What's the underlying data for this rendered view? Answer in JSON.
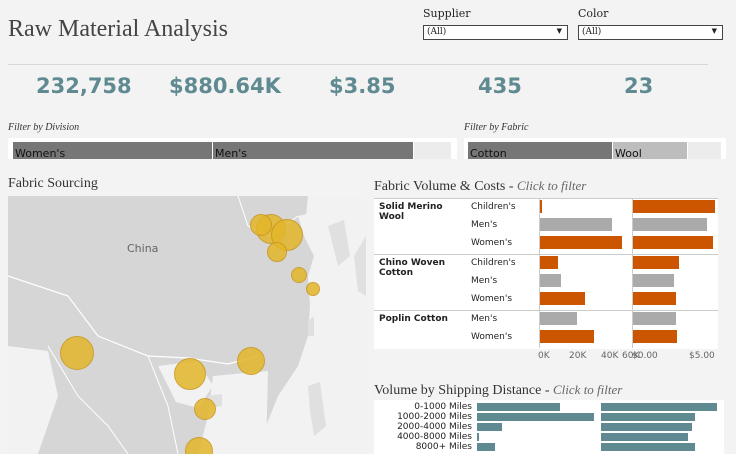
{
  "header": {
    "title": "Raw Material Analysis",
    "supplier_label": "Supplier",
    "supplier_value": "(All)",
    "color_label": "Color",
    "color_value": "(All)"
  },
  "kpis": [
    "232,758",
    "$880.64K",
    "$3.85",
    "435",
    "23"
  ],
  "division_filter": {
    "label": "Filter by Division",
    "segments": [
      {
        "label": "Women's",
        "share": 0.284
      },
      {
        "label": "Men's",
        "share": 0.285
      },
      {
        "label": "",
        "share": 0.054
      }
    ]
  },
  "fabric_filter": {
    "label": "Filter by Fabric",
    "segments": [
      {
        "label": "Cotton",
        "share": 0.56
      },
      {
        "label": "Wool",
        "share": 0.29
      },
      {
        "label": "",
        "share": 0.13
      }
    ]
  },
  "map": {
    "title": "Fabric Sourcing",
    "country_label": "China",
    "bubble_color": "#e3b62a"
  },
  "fabric_chart": {
    "title": "Fabric Volume & Costs",
    "hint": "Click to filter",
    "colors": {
      "men": "#aaaaaa",
      "other": "#cc5500"
    },
    "groups": [
      {
        "name": "Solid Merino Wool",
        "rows": [
          {
            "division": "Children's",
            "volume": 2000,
            "cost": 5.1
          },
          {
            "division": "Men's",
            "volume": 50000,
            "cost": 4.6
          },
          {
            "division": "Women's",
            "volume": 57000,
            "cost": 5.0
          }
        ]
      },
      {
        "name": "Chino Woven Cotton",
        "rows": [
          {
            "division": "Children's",
            "volume": 13000,
            "cost": 2.9
          },
          {
            "division": "Men's",
            "volume": 15000,
            "cost": 2.6
          },
          {
            "division": "Women's",
            "volume": 32000,
            "cost": 2.7
          }
        ]
      },
      {
        "name": "Poplin Cotton",
        "rows": [
          {
            "division": "Men's",
            "volume": 26000,
            "cost": 2.7
          },
          {
            "division": "Women's",
            "volume": 38000,
            "cost": 2.8
          }
        ]
      }
    ],
    "volume_ticks": [
      "0K",
      "20K",
      "40K",
      "60K"
    ],
    "cost_ticks": [
      "$0.00",
      "$5.00"
    ]
  },
  "distance_chart": {
    "title": "Volume by Shipping Distance",
    "hint": "Click to filter",
    "color": "#5f8a91",
    "rows": [
      {
        "label": "0-1000 Miles",
        "volume": 0.7,
        "cost": 0.98
      },
      {
        "label": "1000-2000 Miles",
        "volume": 0.99,
        "cost": 0.8
      },
      {
        "label": "2000-4000 Miles",
        "volume": 0.21,
        "cost": 0.77
      },
      {
        "label": "4000-8000 Miles",
        "volume": 0.02,
        "cost": 0.74
      },
      {
        "label": "8000+ Miles",
        "volume": 0.15,
        "cost": 0.8
      }
    ]
  }
}
